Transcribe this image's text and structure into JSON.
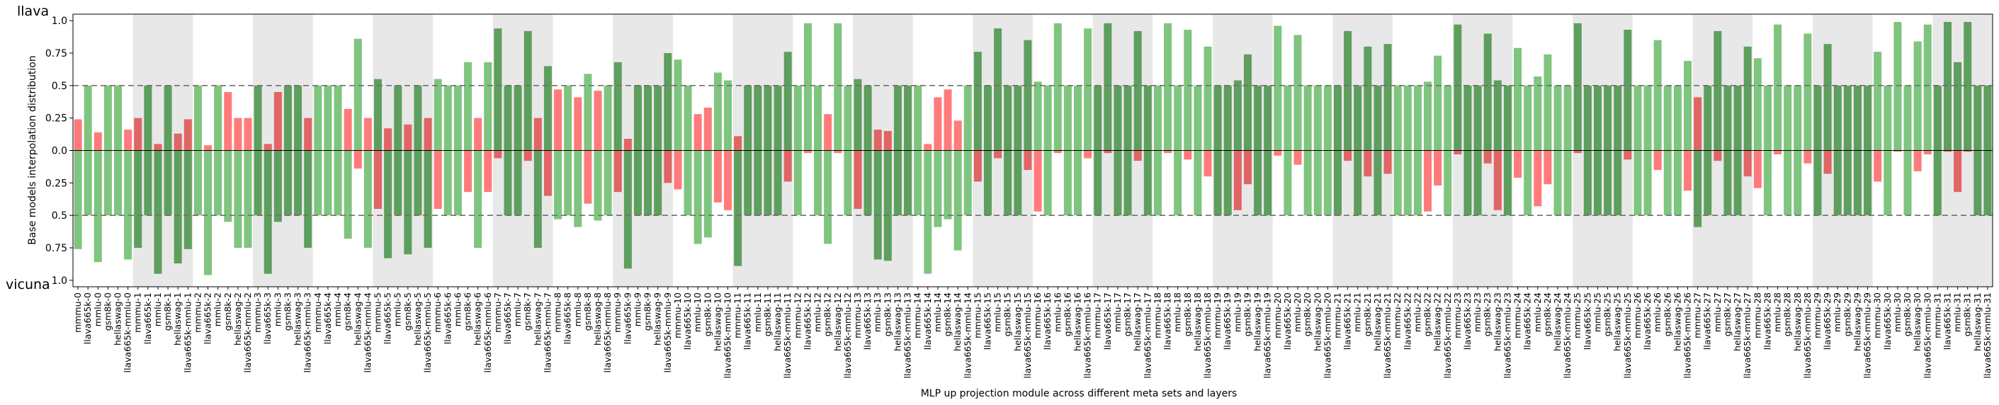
{
  "chart_data": {
    "type": "bar",
    "title": "",
    "top_label": "llava",
    "bottom_label": "vicuna",
    "xlabel": "MLP up projection module across different meta sets and layers",
    "ylabel": "Base models interpolation distribution",
    "ytick_labels": [
      "1.0",
      "0.75",
      "0.5",
      "0.25",
      "0.0",
      "0.25",
      "0.5",
      "0.75",
      "1.0"
    ],
    "ytick_values": [
      1.0,
      0.75,
      0.5,
      0.25,
      0.0,
      -0.25,
      -0.5,
      -0.75,
      -1.0
    ],
    "ylim": [
      -1.05,
      1.05
    ],
    "reference_lines": [
      0.5,
      -0.5
    ],
    "grid": false,
    "colors": {
      "green_light": "#7fc47f",
      "green_dark": "#5e9e5e",
      "red_light": "#ff7b7b",
      "red_dark": "#e06565",
      "band": "#e8e8e8",
      "refline": "#707070"
    },
    "meta_sets": [
      "mmmu",
      "llava665k",
      "gsm8k",
      "hellaswag",
      "llava665k-mmlu",
      "mmlu"
    ],
    "layer_group_size": 6,
    "categories": [
      "mmmu-0",
      "llava665k-0",
      "mmlu-0",
      "gsm8k-0",
      "hellaswag-0",
      "llava665k-mmlu-0",
      "mmmu-1",
      "llava665k-1",
      "mmlu-1",
      "gsm8k-1",
      "hellaswag-1",
      "llava665k-mmlu-1",
      "mmmu-2",
      "llava665k-2",
      "mmlu-2",
      "gsm8k-2",
      "hellaswag-2",
      "llava665k-mmlu-2",
      "mmmu-3",
      "llava665k-3",
      "mmlu-3",
      "gsm8k-3",
      "hellaswag-3",
      "llava665k-mmlu-3",
      "mmmu-4",
      "llava665k-4",
      "mmlu-4",
      "gsm8k-4",
      "hellaswag-4",
      "llava665k-mmlu-4",
      "mmmu-5",
      "llava665k-5",
      "mmlu-5",
      "gsm8k-5",
      "hellaswag-5",
      "llava665k-mmlu-5",
      "mmmu-6",
      "llava665k-6",
      "mmlu-6",
      "gsm8k-6",
      "hellaswag-6",
      "llava665k-mmlu-6",
      "mmmu-7",
      "llava665k-7",
      "mmlu-7",
      "gsm8k-7",
      "hellaswag-7",
      "llava665k-mmlu-7",
      "mmmu-8",
      "llava665k-8",
      "mmlu-8",
      "gsm8k-8",
      "hellaswag-8",
      "llava665k-mmlu-8",
      "mmmu-9",
      "llava665k-9",
      "mmlu-9",
      "gsm8k-9",
      "hellaswag-9",
      "llava665k-mmlu-9",
      "mmmu-10",
      "llava665k-10",
      "mmlu-10",
      "gsm8k-10",
      "hellaswag-10",
      "llava665k-mmlu-10",
      "mmmu-11",
      "llava665k-11",
      "mmlu-11",
      "gsm8k-11",
      "hellaswag-11",
      "llava665k-mmlu-11",
      "mmmu-12",
      "llava665k-12",
      "mmlu-12",
      "gsm8k-12",
      "hellaswag-12",
      "llava665k-mmlu-12",
      "mmmu-13",
      "llava665k-13",
      "mmlu-13",
      "gsm8k-13",
      "hellaswag-13",
      "llava665k-mmlu-13",
      "mmmu-14",
      "llava665k-14",
      "mmlu-14",
      "gsm8k-14",
      "hellaswag-14",
      "llava665k-mmlu-14",
      "mmmu-15",
      "llava665k-15",
      "mmlu-15",
      "gsm8k-15",
      "hellaswag-15",
      "llava665k-mmlu-15",
      "mmmu-16",
      "llava665k-16",
      "mmlu-16",
      "gsm8k-16",
      "hellaswag-16",
      "llava665k-mmlu-16",
      "mmmu-17",
      "llava665k-17",
      "mmlu-17",
      "gsm8k-17",
      "hellaswag-17",
      "llava665k-mmlu-17",
      "mmmu-18",
      "llava665k-18",
      "mmlu-18",
      "gsm8k-18",
      "hellaswag-18",
      "llava665k-mmlu-18",
      "mmmu-19",
      "llava665k-19",
      "mmlu-19",
      "gsm8k-19",
      "hellaswag-19",
      "llava665k-mmlu-19",
      "mmmu-20",
      "llava665k-20",
      "mmlu-20",
      "gsm8k-20",
      "hellaswag-20",
      "llava665k-mmlu-20",
      "mmmu-21",
      "llava665k-21",
      "mmlu-21",
      "gsm8k-21",
      "hellaswag-21",
      "llava665k-mmlu-21",
      "mmmu-22",
      "llava665k-22",
      "mmlu-22",
      "gsm8k-22",
      "hellaswag-22",
      "llava665k-mmlu-22",
      "mmmu-23",
      "llava665k-23",
      "mmlu-23",
      "gsm8k-23",
      "hellaswag-23",
      "llava665k-mmlu-23",
      "mmmu-24",
      "llava665k-24",
      "mmlu-24",
      "gsm8k-24",
      "hellaswag-24",
      "llava665k-mmlu-24",
      "mmmu-25",
      "llava665k-25",
      "mmlu-25",
      "gsm8k-25",
      "hellaswag-25",
      "llava665k-mmlu-25",
      "mmmu-26",
      "llava665k-26",
      "mmlu-26",
      "gsm8k-26",
      "hellaswag-26",
      "llava665k-mmlu-26",
      "mmmu-27",
      "llava665k-27",
      "mmlu-27",
      "gsm8k-27",
      "hellaswag-27",
      "llava665k-mmlu-27",
      "mmmu-28",
      "llava665k-28",
      "mmlu-28",
      "gsm8k-28",
      "hellaswag-28",
      "llava665k-mmlu-28",
      "mmmu-29",
      "llava665k-29",
      "mmlu-29",
      "gsm8k-29",
      "hellaswag-29",
      "llava665k-mmlu-29",
      "mmmu-30",
      "llava665k-30",
      "mmlu-30",
      "gsm8k-30",
      "hellaswag-30",
      "llava665k-mmlu-30",
      "mmmu-31",
      "llava665k-31",
      "mmlu-31",
      "gsm8k-31",
      "hellaswag-31",
      "llava665k-mmlu-31"
    ],
    "llava_values": [
      0.24,
      0.5,
      0.14,
      0.5,
      0.5,
      0.16,
      0.25,
      0.5,
      0.05,
      0.5,
      0.13,
      0.24,
      0.5,
      0.04,
      0.5,
      0.45,
      0.25,
      0.25,
      0.5,
      0.05,
      0.45,
      0.5,
      0.5,
      0.25,
      0.5,
      0.5,
      0.5,
      0.32,
      0.86,
      0.25,
      0.55,
      0.17,
      0.5,
      0.2,
      0.5,
      0.25,
      0.55,
      0.5,
      0.5,
      0.68,
      0.25,
      0.68,
      0.94,
      0.5,
      0.5,
      0.92,
      0.25,
      0.65,
      0.47,
      0.5,
      0.41,
      0.59,
      0.46,
      0.5,
      0.68,
      0.09,
      0.5,
      0.5,
      0.5,
      0.75,
      0.7,
      0.5,
      0.28,
      0.33,
      0.6,
      0.54,
      0.11,
      0.5,
      0.5,
      0.5,
      0.5,
      0.76,
      0.5,
      0.98,
      0.5,
      0.28,
      0.98,
      0.5,
      0.55,
      0.5,
      0.16,
      0.15,
      0.5,
      0.5,
      0.5,
      0.05,
      0.41,
      0.47,
      0.23,
      0.5,
      0.76,
      0.5,
      0.94,
      0.5,
      0.5,
      0.85,
      0.53,
      0.5,
      0.98,
      0.5,
      0.5,
      0.94,
      0.5,
      0.98,
      0.5,
      0.5,
      0.92,
      0.5,
      0.5,
      0.98,
      0.5,
      0.93,
      0.5,
      0.8,
      0.5,
      0.5,
      0.54,
      0.74,
      0.5,
      0.5,
      0.96,
      0.5,
      0.89,
      0.5,
      0.5,
      0.5,
      0.5,
      0.92,
      0.5,
      0.8,
      0.5,
      0.82,
      0.5,
      0.5,
      0.5,
      0.53,
      0.73,
      0.5,
      0.97,
      0.5,
      0.5,
      0.9,
      0.54,
      0.5,
      0.79,
      0.5,
      0.57,
      0.74,
      0.5,
      0.5,
      0.98,
      0.5,
      0.5,
      0.5,
      0.5,
      0.93,
      0.5,
      0.5,
      0.85,
      0.5,
      0.5,
      0.69,
      0.41,
      0.5,
      0.92,
      0.5,
      0.5,
      0.8,
      0.71,
      0.5,
      0.97,
      0.5,
      0.5,
      0.9,
      0.5,
      0.82,
      0.5,
      0.5,
      0.5,
      0.5,
      0.76,
      0.5,
      0.99,
      0.5,
      0.84,
      0.97,
      0.5,
      0.99,
      0.68,
      0.99,
      0.5,
      0.5
    ],
    "vicuna_values": [
      0.76,
      0.5,
      0.86,
      0.5,
      0.5,
      0.84,
      0.75,
      0.5,
      0.95,
      0.5,
      0.87,
      0.76,
      0.5,
      0.96,
      0.5,
      0.55,
      0.75,
      0.75,
      0.5,
      0.95,
      0.55,
      0.5,
      0.5,
      0.75,
      0.5,
      0.5,
      0.5,
      0.68,
      0.14,
      0.75,
      0.45,
      0.83,
      0.5,
      0.8,
      0.5,
      0.75,
      0.45,
      0.5,
      0.5,
      0.32,
      0.75,
      0.32,
      0.06,
      0.5,
      0.5,
      0.08,
      0.75,
      0.35,
      0.53,
      0.5,
      0.59,
      0.41,
      0.54,
      0.5,
      0.32,
      0.91,
      0.5,
      0.5,
      0.5,
      0.25,
      0.3,
      0.5,
      0.72,
      0.67,
      0.4,
      0.46,
      0.89,
      0.5,
      0.5,
      0.5,
      0.5,
      0.24,
      0.5,
      0.02,
      0.5,
      0.72,
      0.02,
      0.5,
      0.45,
      0.5,
      0.84,
      0.85,
      0.5,
      0.5,
      0.5,
      0.95,
      0.59,
      0.53,
      0.77,
      0.5,
      0.24,
      0.5,
      0.06,
      0.5,
      0.5,
      0.15,
      0.47,
      0.5,
      0.02,
      0.5,
      0.5,
      0.06,
      0.5,
      0.02,
      0.5,
      0.5,
      0.08,
      0.5,
      0.5,
      0.02,
      0.5,
      0.07,
      0.5,
      0.2,
      0.5,
      0.5,
      0.46,
      0.26,
      0.5,
      0.5,
      0.04,
      0.5,
      0.11,
      0.5,
      0.5,
      0.5,
      0.5,
      0.08,
      0.5,
      0.2,
      0.5,
      0.18,
      0.5,
      0.5,
      0.5,
      0.47,
      0.27,
      0.5,
      0.03,
      0.5,
      0.5,
      0.1,
      0.46,
      0.5,
      0.21,
      0.5,
      0.43,
      0.26,
      0.5,
      0.5,
      0.02,
      0.5,
      0.5,
      0.5,
      0.5,
      0.07,
      0.5,
      0.5,
      0.15,
      0.5,
      0.5,
      0.31,
      0.59,
      0.5,
      0.08,
      0.5,
      0.5,
      0.2,
      0.29,
      0.5,
      0.03,
      0.5,
      0.5,
      0.1,
      0.5,
      0.18,
      0.5,
      0.5,
      0.5,
      0.5,
      0.24,
      0.5,
      0.01,
      0.5,
      0.16,
      0.03,
      0.5,
      0.01,
      0.32,
      0.01,
      0.5,
      0.5
    ]
  }
}
